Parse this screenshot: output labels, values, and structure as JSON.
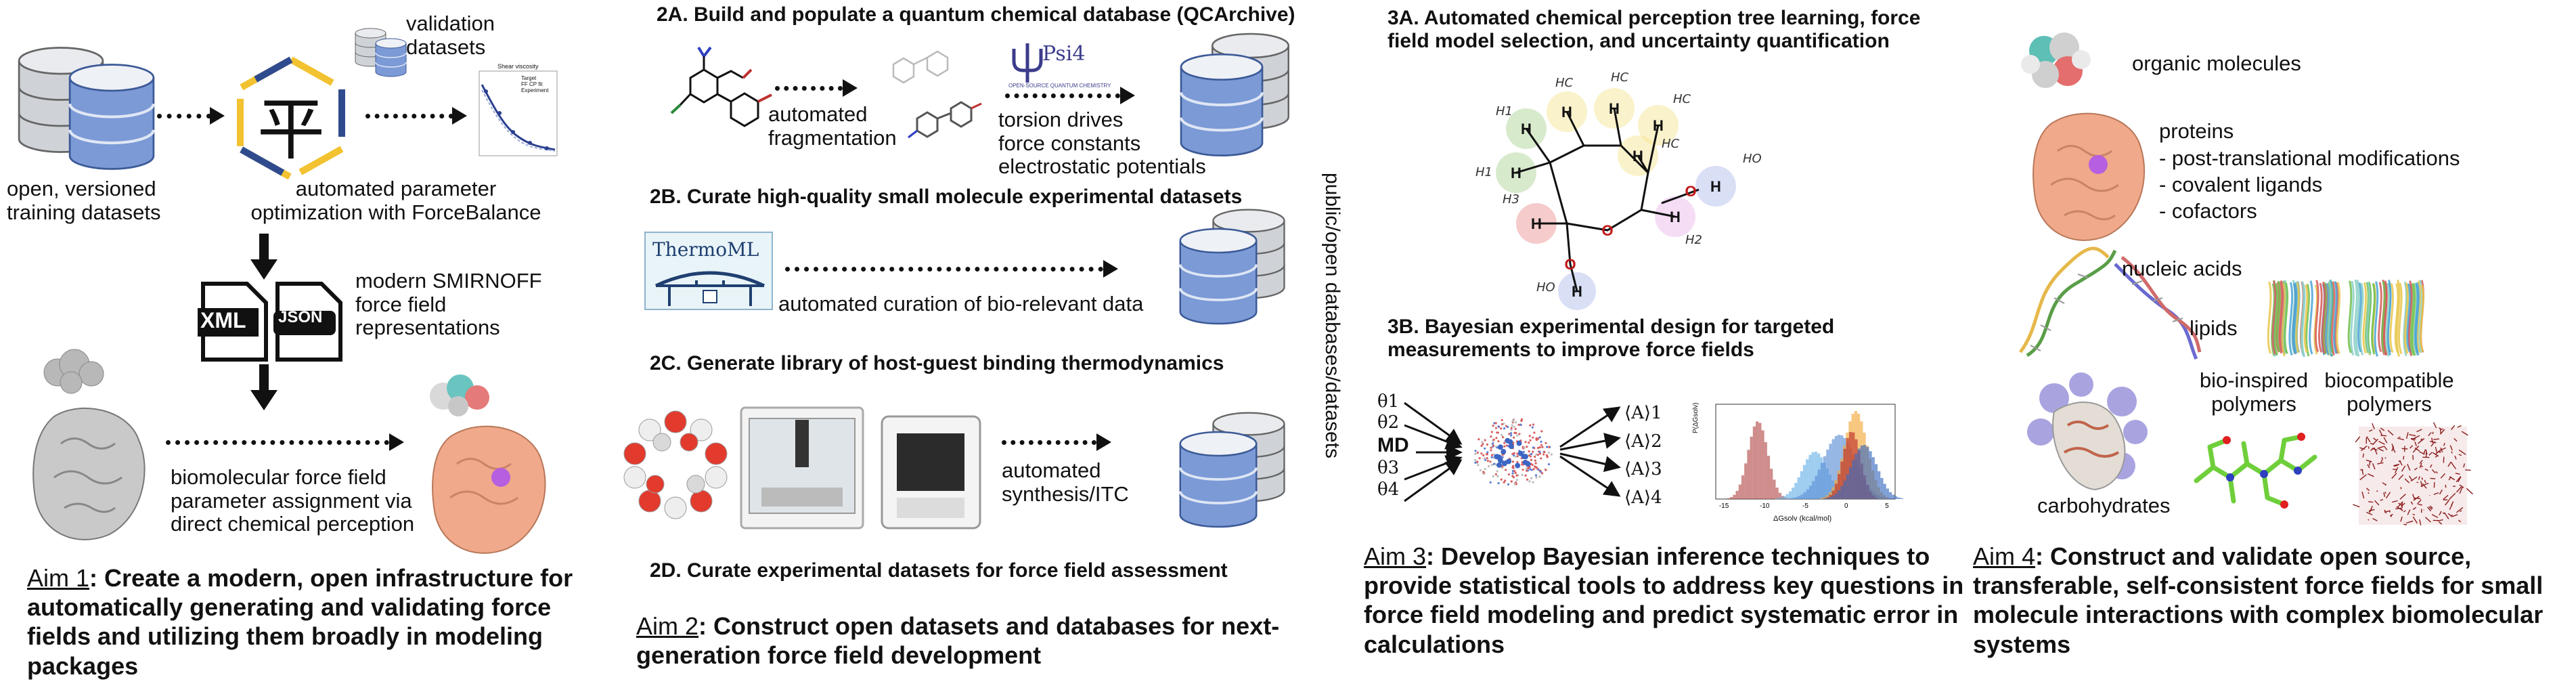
{
  "aim1": {
    "training_label": "open, versioned\ntraining datasets",
    "validation_label": "validation\ndatasets",
    "forcebalance_label": "automated parameter\noptimization with ForceBalance",
    "smirnoff_label": "modern SMIRNOFF\nforce field\nrepresentations",
    "xml_tag": "XML",
    "json_tag": "JSON",
    "assignment_label": "biomolecular force field\nparameter assignment via\ndirect chemical perception",
    "aim_number": "Aim 1",
    "aim_text": ": Create a modern, open infrastructure for automatically generating and validating force fields and utilizing them broadly in modeling packages",
    "ping_glyph": "平",
    "mini_plot": {
      "title": "Shear viscosity",
      "legend": [
        "Target",
        "FF CP fit",
        "Experiment"
      ]
    }
  },
  "aim2": {
    "h2a": "2A. Build and populate a quantum chemical database (QCArchive)",
    "fragmentation_label": "automated\nfragmentation",
    "psi4_logo": "Psi4",
    "psi4_tagline": "OPEN-SOURCE QUANTUM CHEMISTRY",
    "torsion_label": "torsion drives\nforce constants\nelectrostatic potentials",
    "h2b": "2B. Curate high-quality small molecule experimental datasets",
    "thermoml_logo": "ThermoML",
    "curation_label": "automated curation of bio-relevant data",
    "h2c": "2C. Generate library of host-guest binding thermodynamics",
    "synthesis_label": "automated\nsynthesis/ITC",
    "h2d": "2D. Curate experimental datasets for force field assessment",
    "vertical_label": "public/open databases/datasets",
    "aim_number": "Aim 2",
    "aim_text": ": Construct open datasets and databases for next-generation force field development"
  },
  "aim3": {
    "h3a": "3A. Automated chemical perception tree learning, force field model selection, and uncertainty quantification",
    "atom_labels": [
      "H1",
      "HC",
      "HC",
      "HC",
      "H1",
      "HC",
      "HO",
      "H3",
      "H2",
      "HO"
    ],
    "h3b": "3B. Bayesian experimental design for targeted measurements to improve force fields",
    "thetas": [
      "θ1",
      "θ2",
      "MD",
      "θ3",
      "θ4"
    ],
    "observables": [
      "⟨A⟩1",
      "⟨A⟩2",
      "⟨A⟩3",
      "⟨A⟩4"
    ],
    "hist_xlabel": "ΔGsolv (kcal/mol)",
    "hist_ylabel": "P(ΔGsolv)",
    "hist_ticks": [
      "-15",
      "-10",
      "-5",
      "0",
      "5"
    ],
    "aim_number": "Aim 3",
    "aim_text": ": Develop Bayesian inference techniques to provide statistical tools to address key questions in force field modeling and predict systematic error in calculations"
  },
  "aim4": {
    "organic": "organic molecules",
    "proteins": "proteins",
    "protein_items": [
      "- post-translational modifications",
      "- covalent ligands",
      "- cofactors"
    ],
    "nucleic": "nucleic acids",
    "lipids": "lipids",
    "bioinspired": "bio-inspired\npolymers",
    "biocompatible": "biocompatible\npolymers",
    "carbohydrates": "carbohydrates",
    "aim_number": "Aim 4",
    "aim_text": ": Construct and validate open source, transferable, self-consistent force fields for small molecule interactions with complex biomolecular systems"
  },
  "colors": {
    "db_blue": "#6f8fd0",
    "db_grey": "#c8ccd2",
    "protein_salmon": "#f0a98a",
    "ligand_purple": "#b65fe0",
    "forcebalance_yellow": "#f2c230",
    "forcebalance_blue": "#2f4b8e"
  }
}
